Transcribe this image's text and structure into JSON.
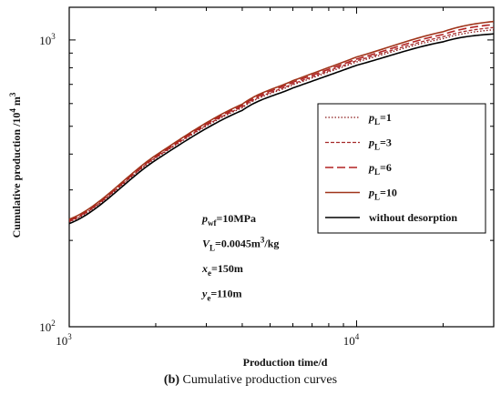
{
  "chart_data": {
    "type": "line",
    "xscale": "log",
    "yscale": "log",
    "xlim": [
      1000,
      30000
    ],
    "ylim": [
      100,
      1300
    ],
    "xlabel": "Production time/d",
    "ylabel_parts": {
      "main": "Cumulative production /10",
      "sup1": "4",
      "m": " m",
      "sup2": "3"
    },
    "xticks": [
      {
        "value": 1000,
        "base": "10",
        "exp": "3"
      },
      {
        "value": 10000,
        "base": "10",
        "exp": "4"
      }
    ],
    "yticks": [
      {
        "value": 100,
        "base": "10",
        "exp": "2"
      },
      {
        "value": 1000,
        "base": "10",
        "exp": "3"
      }
    ],
    "grid": false,
    "legend_position": "right",
    "series": [
      {
        "p": "p",
        "sub": "L",
        "rest": "=1",
        "color": "#8b1a1a",
        "dash": "1.5,2",
        "width": 1.3,
        "x": [
          1000,
          2000,
          4000,
          6000,
          10000,
          20000,
          30000
        ],
        "y": [
          232,
          387,
          580,
          697,
          838,
          1010,
          1085
        ]
      },
      {
        "p": "p",
        "sub": "L",
        "rest": "=3",
        "color": "#a52a2a",
        "dash": "4,2",
        "width": 1.3,
        "x": [
          1000,
          2000,
          4000,
          6000,
          10000,
          20000,
          30000
        ],
        "y": [
          233,
          389,
          584,
          703,
          847,
          1025,
          1105
        ]
      },
      {
        "p": "p",
        "sub": "L",
        "rest": "=6",
        "color": "#b22222",
        "dash": "9,4",
        "width": 1.6,
        "x": [
          1000,
          2000,
          4000,
          6000,
          10000,
          20000,
          30000
        ],
        "y": [
          235,
          392,
          590,
          712,
          858,
          1045,
          1132
        ]
      },
      {
        "p": "p",
        "sub": "L",
        "rest": "=10",
        "color": "#a0341a",
        "dash": "",
        "width": 1.6,
        "x": [
          1000,
          2000,
          4000,
          6000,
          10000,
          20000,
          30000
        ],
        "y": [
          237,
          396,
          597,
          721,
          872,
          1068,
          1160
        ]
      },
      {
        "p": "",
        "sub": "",
        "rest": "without desorption",
        "color": "#000000",
        "dash": "",
        "width": 1.6,
        "x": [
          1000,
          2000,
          4000,
          6000,
          10000,
          20000,
          30000
        ],
        "y": [
          229,
          381,
          568,
          680,
          816,
          985,
          1050
        ]
      }
    ],
    "annotations": [
      {
        "main": "p",
        "sub": "wf",
        "rest": "=10MPa",
        "sup": "",
        "tail": ""
      },
      {
        "main": "V",
        "sub": "L",
        "rest": "=0.0045m",
        "sup": "3",
        "tail": "/kg"
      },
      {
        "main": "x",
        "sub": "e",
        "rest": "=150m",
        "sup": "",
        "tail": ""
      },
      {
        "main": "y",
        "sub": "e",
        "rest": "=110m",
        "sup": "",
        "tail": ""
      }
    ]
  },
  "caption": {
    "label": "(b)",
    "text": " Cumulative production curves"
  }
}
